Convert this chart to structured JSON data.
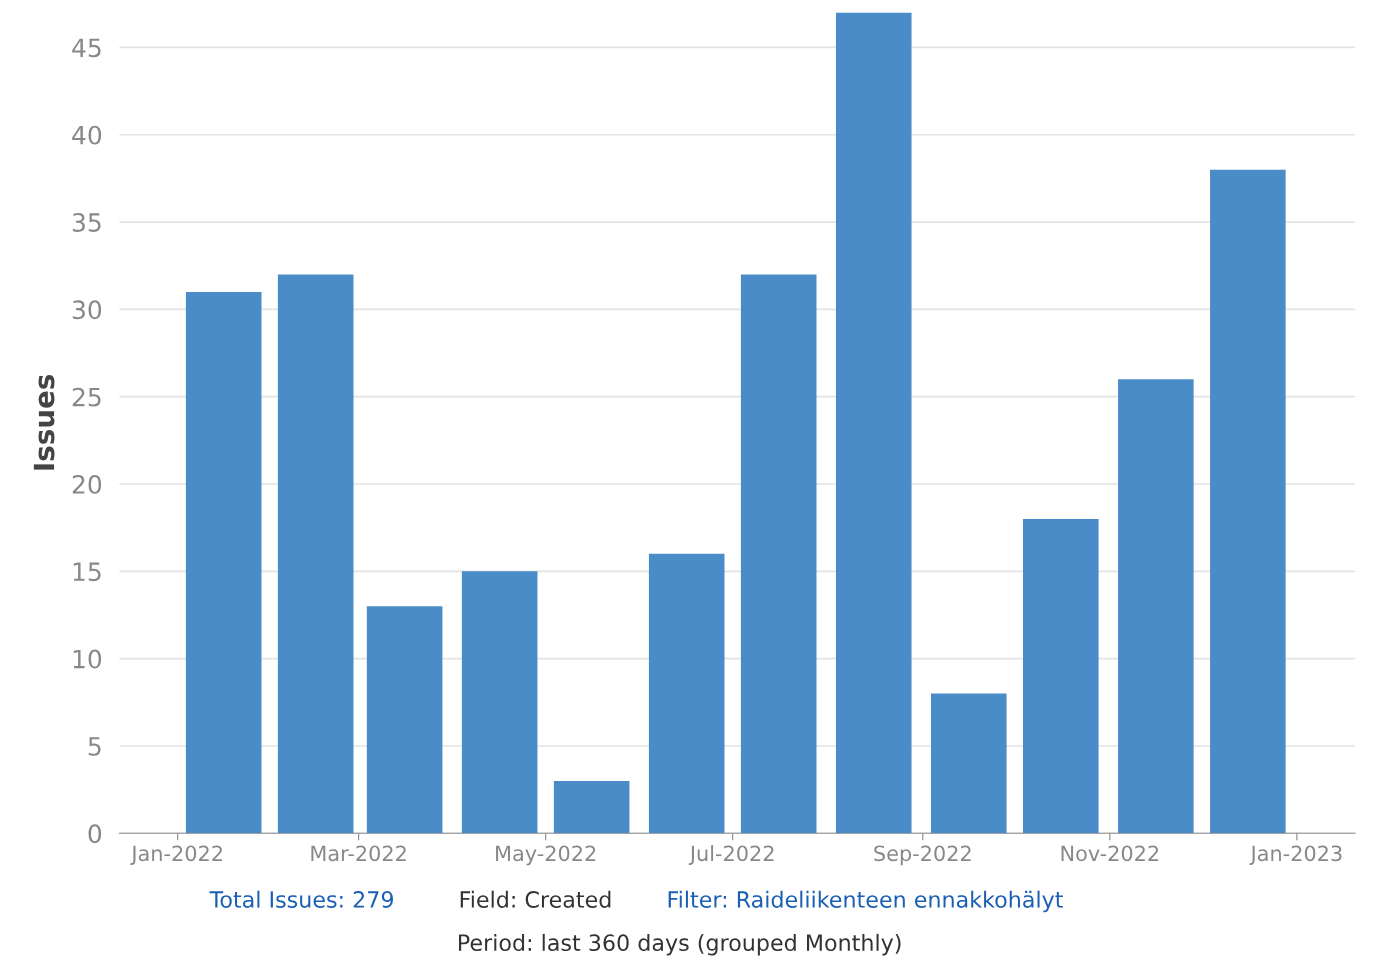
{
  "chart_data": {
    "type": "bar",
    "ylabel": "Issues",
    "x": [
      "2022-01-16",
      "2022-02-15",
      "2022-03-16",
      "2022-04-16",
      "2022-05-16",
      "2022-06-16",
      "2022-07-16",
      "2022-08-16",
      "2022-09-16",
      "2022-10-16",
      "2022-11-16",
      "2022-12-16"
    ],
    "values": [
      31,
      32,
      13,
      15,
      3,
      16,
      32,
      47,
      8,
      18,
      26,
      38
    ],
    "color": "#4a8cc7",
    "xlim": [
      "2021-12-13",
      "2023-01-20"
    ],
    "xticks": [
      {
        "value": "2022-01",
        "label": "Jan-2022"
      },
      {
        "value": "2022-03",
        "label": "Mar-2022"
      },
      {
        "value": "2022-05",
        "label": "May-2022"
      },
      {
        "value": "2022-07",
        "label": "Jul-2022"
      },
      {
        "value": "2022-09",
        "label": "Sep-2022"
      },
      {
        "value": "2022-11",
        "label": "Nov-2022"
      },
      {
        "value": "2023-01",
        "label": "Jan-2023"
      }
    ],
    "ylim": [
      0,
      47
    ],
    "yticks": [
      0,
      5,
      10,
      15,
      20,
      25,
      30,
      35,
      40,
      45
    ],
    "grid": "y",
    "annotations": [
      "Total Issues: 279",
      "Field: Created",
      "Filter: Raideliikenteen ennakkohälyt",
      "Period: last 360 days (grouped Monthly)"
    ]
  }
}
